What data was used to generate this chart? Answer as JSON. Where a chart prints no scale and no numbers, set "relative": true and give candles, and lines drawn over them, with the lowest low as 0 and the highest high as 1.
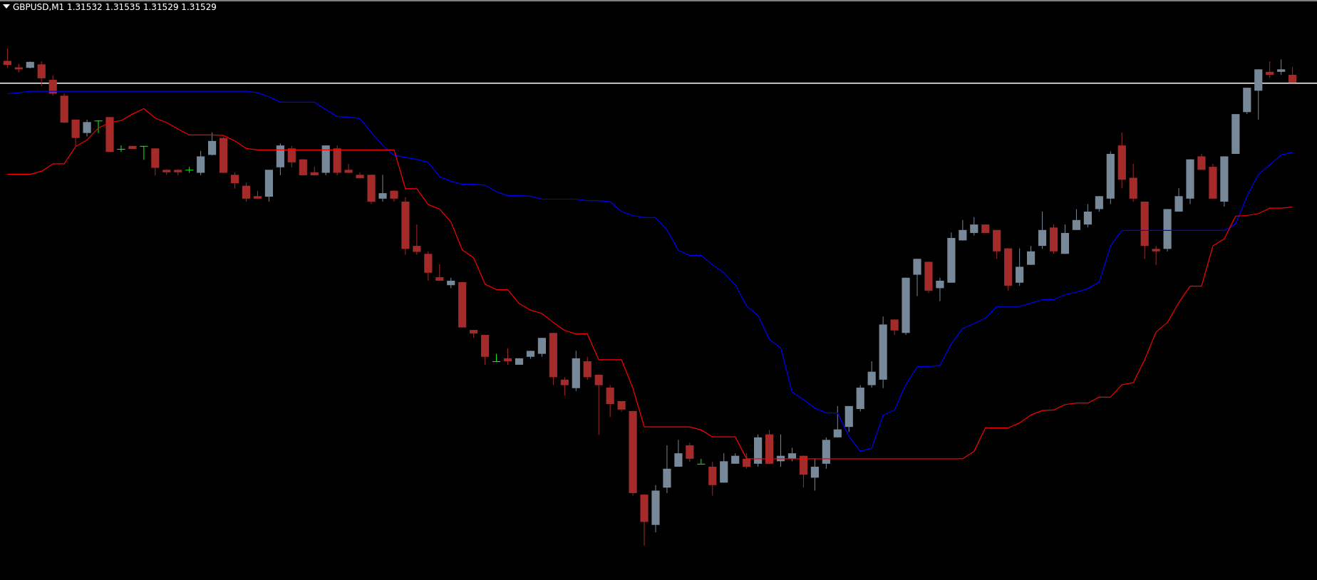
{
  "chart_data": {
    "type": "candlestick",
    "title": "GBPUSD,M1 1.31532 1.31535 1.31529 1.31529",
    "relative": true,
    "categories": [
      null,
      null,
      null,
      null,
      null,
      null,
      null,
      null,
      null,
      null,
      null,
      null,
      null,
      null,
      null,
      null,
      null,
      null,
      null,
      null,
      null,
      null,
      null,
      null,
      null,
      null,
      null,
      null,
      null,
      null,
      null,
      null,
      null,
      null,
      null,
      null,
      null,
      null,
      null,
      null,
      null,
      null,
      null,
      null,
      null,
      null,
      null,
      null,
      null,
      null,
      null,
      null,
      null,
      null,
      null,
      null,
      null,
      null,
      null,
      null,
      null,
      null,
      null,
      null,
      null,
      null,
      null,
      null,
      null,
      null,
      null,
      null,
      null,
      null,
      null,
      null,
      null,
      null,
      null,
      null,
      null,
      null,
      null,
      null,
      null,
      null,
      null,
      null,
      null,
      null,
      null,
      null,
      null,
      null,
      null,
      null,
      null,
      null,
      null,
      null,
      null,
      null,
      null,
      null,
      null,
      null,
      null,
      null,
      null,
      null,
      null,
      null,
      null,
      null
    ],
    "ohlc": [
      [
        0.975,
        1.0,
        0.961,
        0.967
      ],
      [
        0.962,
        0.969,
        0.952,
        0.958
      ],
      [
        0.961,
        0.974,
        0.96,
        0.973
      ],
      [
        0.968,
        0.974,
        0.924,
        0.94
      ],
      [
        0.937,
        0.946,
        0.905,
        0.909
      ],
      [
        0.905,
        0.909,
        0.85,
        0.851
      ],
      [
        0.857,
        0.857,
        0.803,
        0.82
      ],
      [
        0.83,
        0.857,
        0.823,
        0.852
      ],
      [
        0.855,
        0.855,
        0.83,
        0.855
      ],
      [
        0.862,
        0.862,
        0.792,
        0.792
      ],
      [
        0.798,
        0.805,
        0.792,
        0.798
      ],
      [
        0.804,
        0.804,
        0.798,
        0.798
      ],
      [
        0.804,
        0.804,
        0.776,
        0.804
      ],
      [
        0.799,
        0.799,
        0.745,
        0.76
      ],
      [
        0.756,
        0.757,
        0.746,
        0.751
      ],
      [
        0.756,
        0.757,
        0.745,
        0.751
      ],
      [
        0.756,
        0.762,
        0.75,
        0.756
      ],
      [
        0.75,
        0.794,
        0.745,
        0.783
      ],
      [
        0.786,
        0.831,
        0.785,
        0.814
      ],
      [
        0.82,
        0.822,
        0.75,
        0.75
      ],
      [
        0.746,
        0.751,
        0.718,
        0.729
      ],
      [
        0.724,
        0.73,
        0.692,
        0.698
      ],
      [
        0.703,
        0.714,
        0.698,
        0.698
      ],
      [
        0.702,
        0.756,
        0.692,
        0.756
      ],
      [
        0.761,
        0.809,
        0.745,
        0.805
      ],
      [
        0.799,
        0.804,
        0.761,
        0.771
      ],
      [
        0.777,
        0.777,
        0.745,
        0.745
      ],
      [
        0.751,
        0.762,
        0.745,
        0.745
      ],
      [
        0.75,
        0.805,
        0.745,
        0.805
      ],
      [
        0.799,
        0.805,
        0.745,
        0.75
      ],
      [
        0.756,
        0.768,
        0.75,
        0.75
      ],
      [
        0.746,
        0.751,
        0.739,
        0.739
      ],
      [
        0.746,
        0.746,
        0.687,
        0.692
      ],
      [
        0.698,
        0.746,
        0.692,
        0.709
      ],
      [
        0.714,
        0.714,
        0.692,
        0.698
      ],
      [
        0.692,
        0.701,
        0.585,
        0.597
      ],
      [
        0.603,
        0.646,
        0.585,
        0.591
      ],
      [
        0.587,
        0.592,
        0.533,
        0.549
      ],
      [
        0.54,
        0.566,
        0.533,
        0.533
      ],
      [
        0.524,
        0.539,
        0.518,
        0.533
      ],
      [
        0.53,
        0.53,
        0.439,
        0.439
      ],
      [
        0.434,
        0.434,
        0.418,
        0.427
      ],
      [
        0.424,
        0.424,
        0.364,
        0.38
      ],
      [
        0.371,
        0.386,
        0.371,
        0.371
      ],
      [
        0.377,
        0.397,
        0.364,
        0.371
      ],
      [
        0.364,
        0.377,
        0.364,
        0.377
      ],
      [
        0.38,
        0.392,
        0.376,
        0.392
      ],
      [
        0.386,
        0.418,
        0.38,
        0.418
      ],
      [
        0.428,
        0.428,
        0.323,
        0.339
      ],
      [
        0.334,
        0.339,
        0.302,
        0.323
      ],
      [
        0.317,
        0.392,
        0.311,
        0.377
      ],
      [
        0.371,
        0.38,
        0.334,
        0.339
      ],
      [
        0.344,
        0.344,
        0.223,
        0.323
      ],
      [
        0.318,
        0.323,
        0.259,
        0.285
      ],
      [
        0.291,
        0.291,
        0.27,
        0.274
      ],
      [
        0.271,
        0.271,
        0.101,
        0.106
      ],
      [
        0.103,
        0.103,
        0.0,
        0.048
      ],
      [
        0.042,
        0.122,
        0.027,
        0.111
      ],
      [
        0.117,
        0.202,
        0.106,
        0.155
      ],
      [
        0.159,
        0.213,
        0.159,
        0.186
      ],
      [
        0.202,
        0.207,
        0.169,
        0.175
      ],
      [
        0.165,
        0.175,
        0.165,
        0.165
      ],
      [
        0.159,
        0.169,
        0.101,
        0.122
      ],
      [
        0.127,
        0.186,
        0.127,
        0.17
      ],
      [
        0.165,
        0.186,
        0.165,
        0.181
      ],
      [
        0.175,
        0.186,
        0.155,
        0.159
      ],
      [
        0.165,
        0.224,
        0.159,
        0.218
      ],
      [
        0.224,
        0.233,
        0.165,
        0.165
      ],
      [
        0.17,
        0.224,
        0.159,
        0.181
      ],
      [
        0.175,
        0.197,
        0.17,
        0.186
      ],
      [
        0.181,
        0.181,
        0.117,
        0.143
      ],
      [
        0.137,
        0.175,
        0.111,
        0.159
      ],
      [
        0.165,
        0.218,
        0.155,
        0.213
      ],
      [
        0.218,
        0.281,
        0.218,
        0.234
      ],
      [
        0.239,
        0.281,
        0.229,
        0.281
      ],
      [
        0.275,
        0.323,
        0.27,
        0.318
      ],
      [
        0.323,
        0.371,
        0.318,
        0.35
      ],
      [
        0.334,
        0.461,
        0.317,
        0.445
      ],
      [
        0.455,
        0.455,
        0.424,
        0.433
      ],
      [
        0.428,
        0.539,
        0.424,
        0.539
      ],
      [
        0.545,
        0.577,
        0.502,
        0.577
      ],
      [
        0.571,
        0.571,
        0.508,
        0.513
      ],
      [
        0.518,
        0.539,
        0.492,
        0.533
      ],
      [
        0.529,
        0.63,
        0.529,
        0.619
      ],
      [
        0.614,
        0.655,
        0.614,
        0.635
      ],
      [
        0.629,
        0.661,
        0.624,
        0.646
      ],
      [
        0.646,
        0.646,
        0.629,
        0.629
      ],
      [
        0.635,
        0.635,
        0.577,
        0.592
      ],
      [
        0.598,
        0.598,
        0.513,
        0.523
      ],
      [
        0.529,
        0.598,
        0.523,
        0.561
      ],
      [
        0.565,
        0.603,
        0.565,
        0.592
      ],
      [
        0.603,
        0.672,
        0.597,
        0.635
      ],
      [
        0.64,
        0.646,
        0.587,
        0.592
      ],
      [
        0.587,
        0.646,
        0.587,
        0.629
      ],
      [
        0.635,
        0.677,
        0.635,
        0.655
      ],
      [
        0.646,
        0.687,
        0.64,
        0.672
      ],
      [
        0.677,
        0.703,
        0.672,
        0.703
      ],
      [
        0.698,
        0.793,
        0.687,
        0.788
      ],
      [
        0.805,
        0.831,
        0.719,
        0.736
      ],
      [
        0.74,
        0.768,
        0.692,
        0.698
      ],
      [
        0.692,
        0.692,
        0.577,
        0.603
      ],
      [
        0.597,
        0.603,
        0.565,
        0.592
      ],
      [
        0.597,
        0.677,
        0.592,
        0.677
      ],
      [
        0.672,
        0.719,
        0.672,
        0.703
      ],
      [
        0.698,
        0.777,
        0.687,
        0.777
      ],
      [
        0.783,
        0.788,
        0.756,
        0.756
      ],
      [
        0.762,
        0.768,
        0.698,
        0.698
      ],
      [
        0.692,
        0.783,
        0.682,
        0.783
      ],
      [
        0.788,
        0.868,
        0.788,
        0.868
      ],
      [
        0.872,
        0.921,
        0.868,
        0.921
      ],
      [
        0.915,
        0.958,
        0.857,
        0.958
      ],
      [
        0.953,
        0.974,
        0.941,
        0.947
      ],
      [
        0.953,
        0.978,
        0.947,
        0.958
      ],
      [
        0.947,
        0.963,
        0.931,
        0.931
      ]
    ],
    "colors": [
      "#a52a2a",
      "#a52a2a",
      "#778899",
      "#a52a2a",
      "#a52a2a",
      "#a52a2a",
      "#a52a2a",
      "#778899",
      "#00ff00",
      "#a52a2a",
      "#00ff00",
      "#a52a2a",
      "#00ff00",
      "#a52a2a",
      "#a52a2a",
      "#a52a2a",
      "#00ff00",
      "#778899",
      "#778899",
      "#a52a2a",
      "#a52a2a",
      "#a52a2a",
      "#a52a2a",
      "#778899",
      "#778899",
      "#a52a2a",
      "#a52a2a",
      "#a52a2a",
      "#778899",
      "#a52a2a",
      "#a52a2a",
      "#a52a2a",
      "#a52a2a",
      "#778899",
      "#a52a2a",
      "#a52a2a",
      "#a52a2a",
      "#a52a2a",
      "#a52a2a",
      "#778899",
      "#a52a2a",
      "#a52a2a",
      "#a52a2a",
      "#00ff00",
      "#a52a2a",
      "#778899",
      "#778899",
      "#778899",
      "#a52a2a",
      "#a52a2a",
      "#778899",
      "#a52a2a",
      "#a52a2a",
      "#a52a2a",
      "#a52a2a",
      "#a52a2a",
      "#a52a2a",
      "#778899",
      "#778899",
      "#778899",
      "#a52a2a",
      "#00ff00",
      "#a52a2a",
      "#778899",
      "#778899",
      "#a52a2a",
      "#778899",
      "#a52a2a",
      "#778899",
      "#778899",
      "#a52a2a",
      "#778899",
      "#778899",
      "#778899",
      "#778899",
      "#778899",
      "#778899",
      "#778899",
      "#a52a2a",
      "#778899",
      "#778899",
      "#a52a2a",
      "#778899",
      "#778899",
      "#778899",
      "#778899",
      "#a52a2a",
      "#a52a2a",
      "#a52a2a",
      "#778899",
      "#778899",
      "#778899",
      "#a52a2a",
      "#778899",
      "#778899",
      "#778899",
      "#778899",
      "#778899",
      "#a52a2a",
      "#a52a2a",
      "#a52a2a",
      "#a52a2a",
      "#778899",
      "#778899",
      "#778899",
      "#a52a2a",
      "#a52a2a",
      "#778899",
      "#778899",
      "#778899",
      "#778899",
      "#a52a2a",
      "#778899",
      "#a52a2a"
    ],
    "series": [
      {
        "type": "line",
        "color": "#0000ff",
        "values": [
          0.909,
          0.911,
          0.914,
          0.914,
          0.914,
          0.914,
          0.914,
          0.914,
          0.914,
          0.914,
          0.914,
          0.914,
          0.914,
          0.914,
          0.914,
          0.914,
          0.914,
          0.914,
          0.914,
          0.914,
          0.914,
          0.914,
          0.911,
          0.903,
          0.892,
          0.892,
          0.892,
          0.892,
          0.877,
          0.863,
          0.862,
          0.859,
          0.831,
          0.805,
          0.785,
          0.781,
          0.777,
          0.771,
          0.742,
          0.733,
          0.727,
          0.727,
          0.725,
          0.712,
          0.704,
          0.704,
          0.703,
          0.697,
          0.697,
          0.697,
          0.697,
          0.694,
          0.694,
          0.692,
          0.672,
          0.664,
          0.66,
          0.66,
          0.635,
          0.594,
          0.584,
          0.584,
          0.565,
          0.549,
          0.525,
          0.482,
          0.463,
          0.415,
          0.398,
          0.309,
          0.294,
          0.277,
          0.267,
          0.267,
          0.22,
          0.19,
          0.196,
          0.263,
          0.273,
          0.324,
          0.36,
          0.36,
          0.363,
          0.406,
          0.437,
          0.447,
          0.458,
          0.481,
          0.481,
          0.481,
          0.488,
          0.495,
          0.495,
          0.505,
          0.51,
          0.517,
          0.53,
          0.603,
          0.634,
          0.634,
          0.634,
          0.634,
          0.634,
          0.634,
          0.634,
          0.634,
          0.634,
          0.634,
          0.647,
          0.703,
          0.747,
          0.766,
          0.786,
          0.791
        ]
      },
      {
        "type": "line",
        "color": "#ff0000",
        "values": [
          0.747,
          0.747,
          0.747,
          0.753,
          0.768,
          0.768,
          0.803,
          0.816,
          0.84,
          0.851,
          0.855,
          0.868,
          0.879,
          0.86,
          0.851,
          0.838,
          0.826,
          0.826,
          0.826,
          0.825,
          0.814,
          0.799,
          0.796,
          0.796,
          0.796,
          0.796,
          0.796,
          0.796,
          0.796,
          0.796,
          0.796,
          0.796,
          0.796,
          0.796,
          0.796,
          0.718,
          0.718,
          0.686,
          0.677,
          0.651,
          0.595,
          0.579,
          0.526,
          0.515,
          0.515,
          0.487,
          0.474,
          0.467,
          0.449,
          0.433,
          0.426,
          0.426,
          0.374,
          0.374,
          0.374,
          0.317,
          0.239,
          0.239,
          0.239,
          0.239,
          0.239,
          0.233,
          0.219,
          0.219,
          0.219,
          0.175,
          0.175,
          0.175,
          0.175,
          0.175,
          0.175,
          0.175,
          0.175,
          0.175,
          0.175,
          0.175,
          0.175,
          0.175,
          0.175,
          0.175,
          0.175,
          0.175,
          0.175,
          0.175,
          0.175,
          0.19,
          0.237,
          0.237,
          0.237,
          0.247,
          0.263,
          0.272,
          0.273,
          0.284,
          0.287,
          0.287,
          0.299,
          0.299,
          0.324,
          0.328,
          0.374,
          0.43,
          0.449,
          0.489,
          0.522,
          0.522,
          0.603,
          0.617,
          0.663,
          0.664,
          0.668,
          0.679,
          0.679,
          0.681
        ]
      }
    ],
    "ref_lines": [
      {
        "axis": "y",
        "value": 0.93,
        "color": "#ffffff"
      }
    ]
  }
}
